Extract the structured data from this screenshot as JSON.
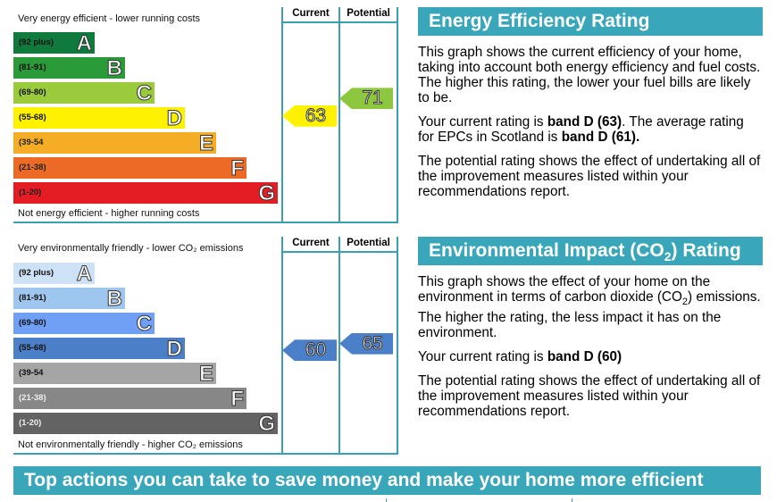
{
  "chart_data": [
    {
      "type": "bar",
      "title": "Energy Efficiency Rating",
      "top_caption": "Very energy efficient - lower running costs",
      "bottom_caption": "Not energy efficient - higher running costs",
      "columns": [
        "Current",
        "Potential"
      ],
      "bands": [
        {
          "letter": "A",
          "range": "(92 plus)",
          "color": "#0f7a3c"
        },
        {
          "letter": "B",
          "range": "(81-91)",
          "color": "#2a9b38"
        },
        {
          "letter": "C",
          "range": "(69-80)",
          "color": "#9acb3c"
        },
        {
          "letter": "D",
          "range": "(55-68)",
          "color": "#fff200"
        },
        {
          "letter": "E",
          "range": "(39-54",
          "color": "#f5ad25"
        },
        {
          "letter": "F",
          "range": "(21-38)",
          "color": "#ec6a26"
        },
        {
          "letter": "G",
          "range": "(1-20)",
          "color": "#e31d23"
        }
      ],
      "current": {
        "value": 63,
        "band": "D",
        "color": "#fff200"
      },
      "potential": {
        "value": 71,
        "band": "C",
        "color": "#8dc63f"
      }
    },
    {
      "type": "bar",
      "title": "Environmental Impact (CO2) Rating",
      "top_caption": "Very environmentally friendly - lower CO₂ emissions",
      "bottom_caption": "Not environmentally friendly - higher CO₂ emissions",
      "columns": [
        "Current",
        "Potential"
      ],
      "bands": [
        {
          "letter": "A",
          "range": "(92 plus)",
          "color": "#cde2f6"
        },
        {
          "letter": "B",
          "range": "(81-91)",
          "color": "#9ec6ef"
        },
        {
          "letter": "C",
          "range": "(69-80)",
          "color": "#6fa0f5"
        },
        {
          "letter": "D",
          "range": "(55-68)",
          "color": "#4b80c8"
        },
        {
          "letter": "E",
          "range": "(39-54",
          "color": "#a5a5a5"
        },
        {
          "letter": "F",
          "range": "(21-38)",
          "color": "#878787"
        },
        {
          "letter": "G",
          "range": "(1-20)",
          "color": "#636363"
        }
      ],
      "current": {
        "value": 60,
        "band": "D",
        "color": "#4b80c8"
      },
      "potential": {
        "value": 65,
        "band": "D",
        "color": "#4b80c8"
      }
    }
  ],
  "energy_panel": {
    "heading": "Energy Efficiency Rating",
    "p1": "This graph shows the current efficiency of your home, taking into account both energy efficiency and fuel costs. The higher this rating, the lower your fuel bills are likely to be.",
    "p2_pre": "Your current rating is ",
    "p2_b1": "band D (63)",
    "p2_mid": ". The average rating for EPCs in Scotland is ",
    "p2_b2": "band D (61).",
    "p3": "The potential rating shows the effect of undertaking all of the improvement measures listed within your recommendations report."
  },
  "env_panel": {
    "heading_pre": "Environmental Impact (CO",
    "heading_sub": "2",
    "heading_post": ") Rating",
    "p1_pre": "This graph shows the effect of your home on the environment in terms of carbon dioxide (CO",
    "p1_sub": "2",
    "p1_post": ") emissions. The higher the rating, the less impact it has on the environment.",
    "p2_pre": "Your current rating is ",
    "p2_b": "band D (60)",
    "p3": "The potential rating shows the effect of undertaking all of the improvement measures listed within your recommendations report."
  },
  "banner": "Top actions you can take to save money and make your home more efficient"
}
